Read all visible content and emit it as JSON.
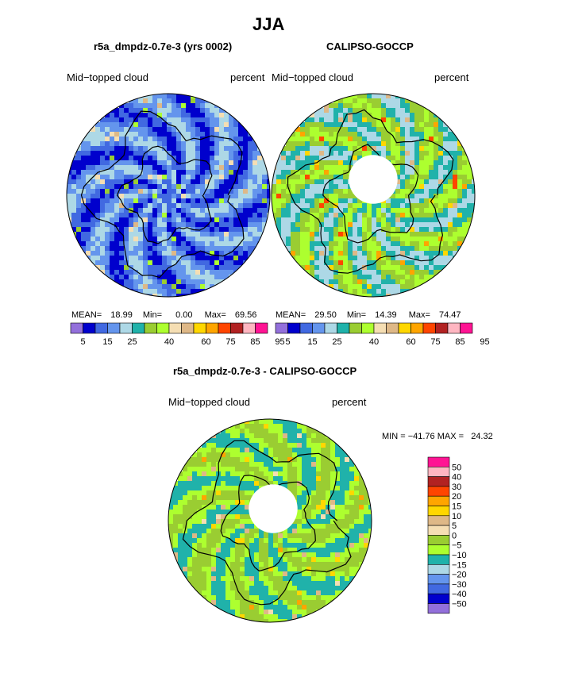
{
  "page_title": "JJA",
  "chart_data": [
    {
      "type": "heatmap",
      "projection": "polar-stereographic (north pole)",
      "title": "r5a_dmpdz-0.7e-3 (yrs 0002)",
      "variable": "Mid−topped cloud",
      "units": "percent",
      "stats": {
        "mean_label": "MEAN=",
        "mean": "18.99",
        "min_label": "Min=",
        "min": "0.00",
        "max_label": "Max=",
        "max": "69.56"
      },
      "has_polar_gap": false,
      "dominant_range": [
        5,
        25
      ],
      "colorbar": {
        "orientation": "horizontal",
        "levels": [
          5,
          10,
          15,
          20,
          25,
          30,
          35,
          40,
          45,
          50,
          55,
          60,
          65,
          70,
          75,
          80,
          85,
          90,
          95
        ],
        "labels": [
          "5",
          "15",
          "25",
          "40",
          "60",
          "75",
          "85",
          "95"
        ],
        "label_index": [
          0,
          2,
          4,
          7,
          10,
          12,
          14,
          16
        ],
        "colors": [
          "#9370db",
          "#0000cd",
          "#4169e1",
          "#6495ed",
          "#add8e6",
          "#20b2aa",
          "#9acd32",
          "#adff2f",
          "#f5deb3",
          "#deb887",
          "#ffd700",
          "#ffa500",
          "#ff4500",
          "#b22222",
          "#ffb6c1",
          "#ff1493"
        ]
      }
    },
    {
      "type": "heatmap",
      "projection": "polar-stereographic (north pole)",
      "title": "CALIPSO-GOCCP",
      "variable": "Mid−topped cloud",
      "units": "percent",
      "stats": {
        "mean_label": "MEAN=",
        "mean": "29.50",
        "min_label": "Min=",
        "min": "14.39",
        "max_label": "Max=",
        "max": "74.47"
      },
      "has_polar_gap": true,
      "dominant_range": [
        20,
        40
      ],
      "colorbar": {
        "orientation": "horizontal",
        "levels": [
          5,
          10,
          15,
          20,
          25,
          30,
          35,
          40,
          45,
          50,
          55,
          60,
          65,
          70,
          75,
          80,
          85,
          90,
          95
        ],
        "labels": [
          "5",
          "15",
          "25",
          "40",
          "60",
          "75",
          "85",
          "95"
        ],
        "label_index": [
          0,
          2,
          4,
          7,
          10,
          12,
          14,
          16
        ],
        "colors": [
          "#9370db",
          "#0000cd",
          "#4169e1",
          "#6495ed",
          "#add8e6",
          "#20b2aa",
          "#9acd32",
          "#adff2f",
          "#f5deb3",
          "#deb887",
          "#ffd700",
          "#ffa500",
          "#ff4500",
          "#b22222",
          "#ffb6c1",
          "#ff1493"
        ]
      }
    },
    {
      "type": "heatmap",
      "projection": "polar-stereographic (north pole)",
      "title": "r5a_dmpdz-0.7e-3 - CALIPSO-GOCCP",
      "variable": "Mid−topped cloud",
      "units": "percent",
      "stats_text": "MIN = −41.76 MAX =   24.32",
      "min": -41.76,
      "max": 24.32,
      "has_polar_gap": true,
      "dominant_range": [
        -15,
        0
      ],
      "colorbar": {
        "orientation": "vertical",
        "labels": [
          "50",
          "40",
          "30",
          "20",
          "15",
          "10",
          "5",
          "0",
          "−5",
          "−10",
          "−15",
          "−20",
          "−30",
          "−40",
          "−50"
        ],
        "colors_top_to_bottom": [
          "#ff1493",
          "#ffb6c1",
          "#b22222",
          "#ff4500",
          "#ffa500",
          "#ffd700",
          "#deb887",
          "#f5deb3",
          "#9acd32",
          "#adff2f",
          "#20b2aa",
          "#add8e6",
          "#6495ed",
          "#4169e1",
          "#0000cd",
          "#9370db"
        ]
      }
    }
  ]
}
